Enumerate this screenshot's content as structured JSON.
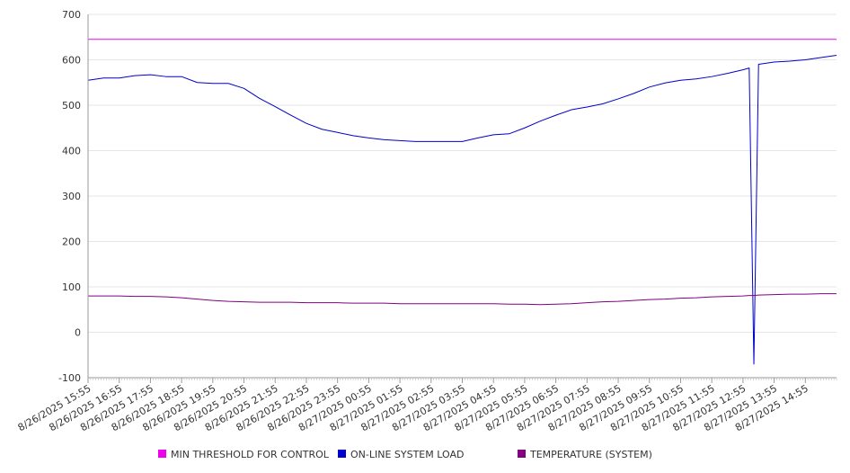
{
  "chart_data": {
    "type": "line",
    "title": "",
    "xlabel": "",
    "ylabel": "",
    "ylim": [
      -100,
      700
    ],
    "y_ticks": [
      -100,
      0,
      100,
      200,
      300,
      400,
      500,
      600,
      700
    ],
    "grid": true,
    "legend_position": "bottom",
    "x_tick_labels": [
      "8/26/2025 15:55",
      "8/26/2025 16:55",
      "8/26/2025 17:55",
      "8/26/2025 18:55",
      "8/26/2025 19:55",
      "8/26/2025 20:55",
      "8/26/2025 21:55",
      "8/26/2025 22:55",
      "8/26/2025 23:55",
      "8/27/2025 00:55",
      "8/27/2025 01:55",
      "8/27/2025 02:55",
      "8/27/2025 03:55",
      "8/27/2025 04:55",
      "8/27/2025 05:55",
      "8/27/2025 06:55",
      "8/27/2025 07:55",
      "8/27/2025 08:55",
      "8/27/2025 09:55",
      "8/27/2025 10:55",
      "8/27/2025 11:55",
      "8/27/2025 12:55",
      "8/27/2025 13:55",
      "8/27/2025 14:55"
    ],
    "x_hours": [
      0,
      0.5,
      1,
      1.5,
      2,
      2.5,
      3,
      3.5,
      4,
      4.5,
      5,
      5.5,
      6,
      6.5,
      7,
      7.5,
      8,
      8.5,
      9,
      9.5,
      10,
      10.5,
      11,
      11.5,
      12,
      12.5,
      13,
      13.5,
      14,
      14.5,
      15,
      15.5,
      16,
      16.5,
      17,
      17.5,
      18,
      18.5,
      19,
      19.5,
      20,
      20.5,
      21,
      21.2,
      21.35,
      21.5,
      22,
      22.5,
      23,
      23.5,
      24
    ],
    "series": [
      {
        "name": "MIN THRESHOLD FOR CONTROL",
        "color": "#ee00ee",
        "values": [
          645,
          645,
          645,
          645,
          645,
          645,
          645,
          645,
          645,
          645,
          645,
          645,
          645,
          645,
          645,
          645,
          645,
          645,
          645,
          645,
          645,
          645,
          645,
          645,
          645,
          645,
          645,
          645,
          645,
          645,
          645,
          645,
          645,
          645,
          645,
          645,
          645,
          645,
          645,
          645,
          645,
          645,
          645,
          645,
          645,
          645,
          645,
          645,
          645,
          645,
          645
        ]
      },
      {
        "name": "ON-LINE SYSTEM LOAD",
        "color": "#0000cc",
        "values": [
          555,
          560,
          560,
          565,
          567,
          563,
          563,
          550,
          548,
          548,
          537,
          515,
          497,
          478,
          460,
          447,
          440,
          433,
          428,
          424,
          422,
          420,
          420,
          420,
          420,
          428,
          435,
          437,
          450,
          465,
          478,
          490,
          496,
          503,
          514,
          526,
          540,
          549,
          555,
          558,
          563,
          570,
          578,
          582,
          -70,
          590,
          595,
          597,
          600,
          605,
          610
        ]
      },
      {
        "name": "TEMPERATURE (SYSTEM)",
        "color": "#800080",
        "values": [
          80,
          80,
          80,
          79,
          79,
          78,
          76,
          73,
          70,
          68,
          67,
          66,
          66,
          66,
          65,
          65,
          65,
          64,
          64,
          64,
          63,
          63,
          63,
          63,
          63,
          63,
          63,
          62,
          62,
          61,
          62,
          63,
          65,
          67,
          68,
          70,
          72,
          73,
          75,
          76,
          78,
          79,
          80,
          81,
          81,
          82,
          83,
          84,
          84,
          85,
          85
        ]
      }
    ]
  }
}
